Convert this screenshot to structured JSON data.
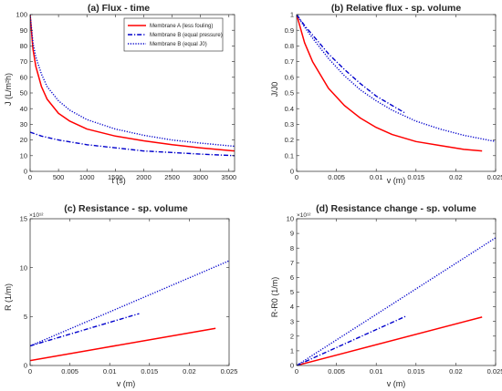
{
  "colors": {
    "red": "#ff0000",
    "blue": "#0000cc",
    "axis": "#262626"
  },
  "legend": {
    "placement": "top-right",
    "entries": [
      {
        "label": "Membrane A (less fouling)",
        "color": "#ff0000",
        "style": "solid"
      },
      {
        "label": "Membrane B (equal pressure)",
        "color": "#0000cc",
        "style": "dashdot"
      },
      {
        "label": "Membrane B (equal J0)",
        "color": "#0000cc",
        "style": "dotted"
      }
    ]
  },
  "chart_data": [
    {
      "id": "a",
      "type": "line",
      "title": "(a) Flux - time",
      "xlabel": "t (s)",
      "ylabel": "J (L/m²h)",
      "xlim": [
        0,
        3600
      ],
      "ylim": [
        0,
        100
      ],
      "xticks": [
        0,
        500,
        1000,
        1500,
        2000,
        2500,
        3000,
        3500
      ],
      "yticks": [
        0,
        10,
        20,
        30,
        40,
        50,
        60,
        70,
        80,
        90,
        100
      ],
      "exponent": "",
      "grid": false,
      "series": [
        {
          "legend_index": 0,
          "color": "#ff0000",
          "style": "solid",
          "x": [
            0,
            50,
            100,
            200,
            300,
            500,
            700,
            1000,
            1500,
            2000,
            2500,
            3000,
            3600
          ],
          "y": [
            100,
            78,
            67,
            54,
            46,
            37,
            32,
            27,
            22.5,
            19.5,
            17,
            15,
            13
          ]
        },
        {
          "legend_index": 1,
          "color": "#0000cc",
          "style": "dashdot",
          "x": [
            0,
            200,
            500,
            1000,
            1500,
            2000,
            2500,
            3000,
            3600
          ],
          "y": [
            25,
            22.5,
            20,
            17,
            15,
            13,
            12,
            11,
            10
          ]
        },
        {
          "legend_index": 2,
          "color": "#0000cc",
          "style": "dotted",
          "x": [
            0,
            50,
            100,
            200,
            300,
            500,
            700,
            1000,
            1500,
            2000,
            2500,
            3000,
            3600
          ],
          "y": [
            100,
            82,
            73,
            62,
            54,
            45,
            39,
            33,
            27,
            23,
            20,
            18,
            16
          ]
        }
      ]
    },
    {
      "id": "b",
      "type": "line",
      "title": "(b) Relative flux - sp. volume",
      "xlabel": "v (m)",
      "ylabel": "J/J0",
      "xlim": [
        0,
        0.025
      ],
      "ylim": [
        0,
        1
      ],
      "xticks": [
        0,
        0.005,
        0.01,
        0.015,
        0.02,
        0.025
      ],
      "yticks": [
        0,
        0.1,
        0.2,
        0.3,
        0.4,
        0.5,
        0.6,
        0.7,
        0.8,
        0.9,
        1
      ],
      "exponent": "",
      "grid": false,
      "series": [
        {
          "legend_index": 0,
          "color": "#ff0000",
          "style": "solid",
          "x": [
            0,
            0.001,
            0.002,
            0.004,
            0.006,
            0.008,
            0.01,
            0.012,
            0.015,
            0.018,
            0.021,
            0.0233
          ],
          "y": [
            1,
            0.82,
            0.7,
            0.53,
            0.42,
            0.34,
            0.28,
            0.235,
            0.19,
            0.165,
            0.14,
            0.13
          ]
        },
        {
          "legend_index": 1,
          "color": "#0000cc",
          "style": "dashdot",
          "x": [
            0,
            0.001,
            0.002,
            0.004,
            0.006,
            0.008,
            0.01,
            0.012,
            0.0137
          ],
          "y": [
            1,
            0.93,
            0.87,
            0.75,
            0.65,
            0.56,
            0.48,
            0.42,
            0.37
          ]
        },
        {
          "legend_index": 2,
          "color": "#0000cc",
          "style": "dotted",
          "x": [
            0,
            0.001,
            0.002,
            0.004,
            0.006,
            0.008,
            0.01,
            0.012,
            0.015,
            0.018,
            0.021,
            0.025
          ],
          "y": [
            1,
            0.92,
            0.85,
            0.72,
            0.61,
            0.52,
            0.45,
            0.39,
            0.32,
            0.27,
            0.23,
            0.19
          ]
        }
      ]
    },
    {
      "id": "c",
      "type": "line",
      "title": "(c) Resistance - sp. volume",
      "xlabel": "v (m)",
      "ylabel": "R (1/m)",
      "xlim": [
        0,
        0.025
      ],
      "ylim": [
        0,
        15
      ],
      "xticks": [
        0,
        0.005,
        0.01,
        0.015,
        0.02,
        0.025
      ],
      "yticks": [
        0,
        5,
        10,
        15
      ],
      "exponent": "×10¹²",
      "grid": false,
      "series": [
        {
          "legend_index": 0,
          "color": "#ff0000",
          "style": "solid",
          "x": [
            0,
            0.0233
          ],
          "y": [
            0.5,
            3.8
          ]
        },
        {
          "legend_index": 1,
          "color": "#0000cc",
          "style": "dashdot",
          "x": [
            0,
            0.0137
          ],
          "y": [
            2,
            5.3
          ]
        },
        {
          "legend_index": 2,
          "color": "#0000cc",
          "style": "dotted",
          "x": [
            0,
            0.025
          ],
          "y": [
            2,
            10.7
          ]
        }
      ]
    },
    {
      "id": "d",
      "type": "line",
      "title": "(d) Resistance change - sp. volume",
      "xlabel": "v (m)",
      "ylabel": "R-R0 (1/m)",
      "xlim": [
        0,
        0.025
      ],
      "ylim": [
        0,
        10
      ],
      "xticks": [
        0,
        0.005,
        0.01,
        0.015,
        0.02,
        0.025
      ],
      "yticks": [
        0,
        1,
        2,
        3,
        4,
        5,
        6,
        7,
        8,
        9,
        10
      ],
      "exponent": "×10¹²",
      "grid": false,
      "series": [
        {
          "legend_index": 0,
          "color": "#ff0000",
          "style": "solid",
          "x": [
            0,
            0.0233
          ],
          "y": [
            0,
            3.3
          ]
        },
        {
          "legend_index": 1,
          "color": "#0000cc",
          "style": "dashdot",
          "x": [
            0,
            0.0137
          ],
          "y": [
            0,
            3.35
          ]
        },
        {
          "legend_index": 2,
          "color": "#0000cc",
          "style": "dotted",
          "x": [
            0,
            0.025
          ],
          "y": [
            0,
            8.7
          ]
        }
      ]
    }
  ]
}
